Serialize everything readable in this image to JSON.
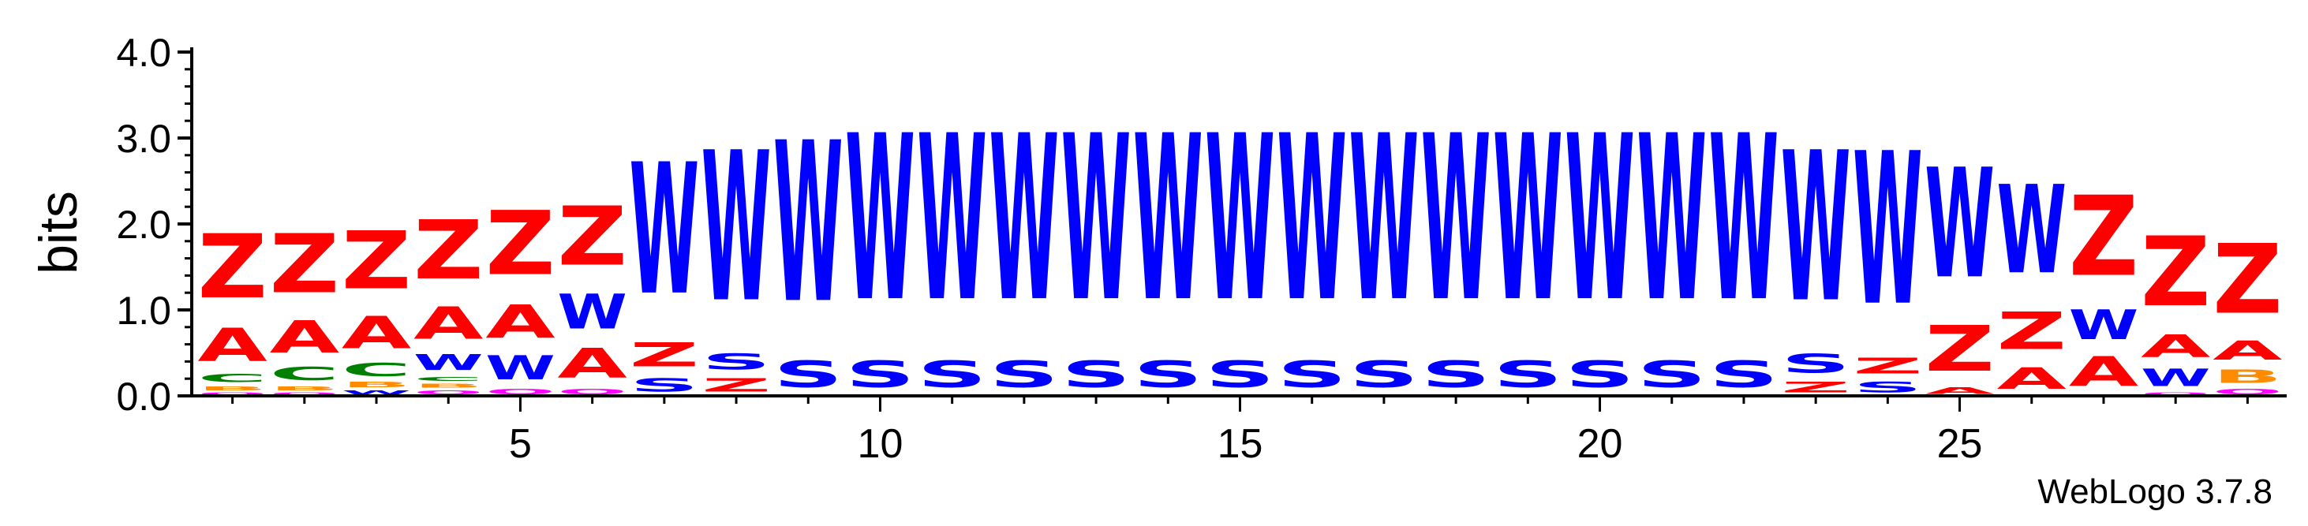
{
  "chart_data": {
    "type": "sequence-logo",
    "ylabel": "bits",
    "ylim": [
      0,
      4.0
    ],
    "y_ticks": [
      "0.0",
      "1.0",
      "2.0",
      "3.0",
      "4.0"
    ],
    "x_ticks": [
      5,
      10,
      15,
      20,
      25
    ],
    "x_range": [
      1,
      29
    ],
    "credit": "WebLogo 3.7.8",
    "colors": {
      "Z": "#ff0000",
      "A": "#ff0000",
      "W": "#0000ff",
      "S": "#0000ff",
      "C": "#008000",
      "B": "#ff8c00",
      "Q": "#ff00ff",
      "N": "#ff00ff",
      "axis": "#000000"
    },
    "positions": [
      {
        "pos": 1,
        "letters": [
          {
            "c": "Q",
            "h": 0.05
          },
          {
            "c": "B",
            "h": 0.08
          },
          {
            "c": "C",
            "h": 0.15
          },
          {
            "c": "A",
            "h": 0.62
          },
          {
            "c": "Z",
            "h": 1.2
          }
        ]
      },
      {
        "pos": 2,
        "letters": [
          {
            "c": "Q",
            "h": 0.05
          },
          {
            "c": "B",
            "h": 0.08
          },
          {
            "c": "C",
            "h": 0.25
          },
          {
            "c": "A",
            "h": 0.6
          },
          {
            "c": "Z",
            "h": 1.1
          }
        ]
      },
      {
        "pos": 3,
        "letters": [
          {
            "c": "W",
            "h": 0.08
          },
          {
            "c": "B",
            "h": 0.1
          },
          {
            "c": "C",
            "h": 0.25
          },
          {
            "c": "A",
            "h": 0.6
          },
          {
            "c": "Z",
            "h": 1.08
          }
        ]
      },
      {
        "pos": 4,
        "letters": [
          {
            "c": "Q",
            "h": 0.08
          },
          {
            "c": "B",
            "h": 0.08
          },
          {
            "c": "C",
            "h": 0.08
          },
          {
            "c": "W",
            "h": 0.3
          },
          {
            "c": "A",
            "h": 0.6
          },
          {
            "c": "Z",
            "h": 1.1
          }
        ]
      },
      {
        "pos": 5,
        "letters": [
          {
            "c": "Q",
            "h": 0.1
          },
          {
            "c": "W",
            "h": 0.45
          },
          {
            "c": "A",
            "h": 0.62
          },
          {
            "c": "Z",
            "h": 1.2
          }
        ]
      },
      {
        "pos": 6,
        "letters": [
          {
            "c": "Q",
            "h": 0.1
          },
          {
            "c": "A",
            "h": 0.55
          },
          {
            "c": "W",
            "h": 0.65
          },
          {
            "c": "Z",
            "h": 1.1
          }
        ]
      },
      {
        "pos": 7,
        "letters": [
          {
            "c": "S",
            "h": 0.25
          },
          {
            "c": "Z",
            "h": 0.45
          },
          {
            "c": "W",
            "h": 2.45
          }
        ]
      },
      {
        "pos": 8,
        "letters": [
          {
            "c": "Z",
            "h": 0.25
          },
          {
            "c": "S",
            "h": 0.3
          },
          {
            "c": "W",
            "h": 2.8
          }
        ]
      },
      {
        "pos": 9,
        "letters": [
          {
            "c": "S",
            "h": 0.5
          },
          {
            "c": "W",
            "h": 3.0
          }
        ]
      },
      {
        "pos": 10,
        "letters": [
          {
            "c": "S",
            "h": 0.5
          },
          {
            "c": "W",
            "h": 3.1
          }
        ]
      },
      {
        "pos": 11,
        "letters": [
          {
            "c": "S",
            "h": 0.5
          },
          {
            "c": "W",
            "h": 3.1
          }
        ]
      },
      {
        "pos": 12,
        "letters": [
          {
            "c": "S",
            "h": 0.5
          },
          {
            "c": "W",
            "h": 3.1
          }
        ]
      },
      {
        "pos": 13,
        "letters": [
          {
            "c": "S",
            "h": 0.5
          },
          {
            "c": "W",
            "h": 3.1
          }
        ]
      },
      {
        "pos": 14,
        "letters": [
          {
            "c": "S",
            "h": 0.5
          },
          {
            "c": "W",
            "h": 3.1
          }
        ]
      },
      {
        "pos": 15,
        "letters": [
          {
            "c": "S",
            "h": 0.5
          },
          {
            "c": "W",
            "h": 3.1
          }
        ]
      },
      {
        "pos": 16,
        "letters": [
          {
            "c": "S",
            "h": 0.5
          },
          {
            "c": "W",
            "h": 3.1
          }
        ]
      },
      {
        "pos": 17,
        "letters": [
          {
            "c": "S",
            "h": 0.5
          },
          {
            "c": "W",
            "h": 3.1
          }
        ]
      },
      {
        "pos": 18,
        "letters": [
          {
            "c": "S",
            "h": 0.5
          },
          {
            "c": "W",
            "h": 3.1
          }
        ]
      },
      {
        "pos": 19,
        "letters": [
          {
            "c": "S",
            "h": 0.5
          },
          {
            "c": "W",
            "h": 3.1
          }
        ]
      },
      {
        "pos": 20,
        "letters": [
          {
            "c": "S",
            "h": 0.5
          },
          {
            "c": "W",
            "h": 3.1
          }
        ]
      },
      {
        "pos": 21,
        "letters": [
          {
            "c": "S",
            "h": 0.5
          },
          {
            "c": "W",
            "h": 3.1
          }
        ]
      },
      {
        "pos": 22,
        "letters": [
          {
            "c": "S",
            "h": 0.5
          },
          {
            "c": "W",
            "h": 3.1
          }
        ]
      },
      {
        "pos": 23,
        "letters": [
          {
            "c": "Z",
            "h": 0.2
          },
          {
            "c": "S",
            "h": 0.35
          },
          {
            "c": "W",
            "h": 2.8
          }
        ]
      },
      {
        "pos": 24,
        "letters": [
          {
            "c": "S",
            "h": 0.2
          },
          {
            "c": "Z",
            "h": 0.3
          },
          {
            "c": "W",
            "h": 2.85
          }
        ]
      },
      {
        "pos": 25,
        "letters": [
          {
            "c": "A",
            "h": 0.12
          },
          {
            "c": "Z",
            "h": 0.85
          },
          {
            "c": "W",
            "h": 2.05
          }
        ]
      },
      {
        "pos": 26,
        "letters": [
          {
            "c": "A",
            "h": 0.4
          },
          {
            "c": "Z",
            "h": 0.7
          },
          {
            "c": "W",
            "h": 1.65
          }
        ]
      },
      {
        "pos": 27,
        "letters": [
          {
            "c": "A",
            "h": 0.55
          },
          {
            "c": "W",
            "h": 0.55
          },
          {
            "c": "Z",
            "h": 1.5
          }
        ]
      },
      {
        "pos": 28,
        "letters": [
          {
            "c": "Q",
            "h": 0.05
          },
          {
            "c": "W",
            "h": 0.32
          },
          {
            "c": "A",
            "h": 0.42
          },
          {
            "c": "Z",
            "h": 1.3
          }
        ]
      },
      {
        "pos": 29,
        "letters": [
          {
            "c": "Q",
            "h": 0.1
          },
          {
            "c": "B",
            "h": 0.25
          },
          {
            "c": "A",
            "h": 0.35
          },
          {
            "c": "Z",
            "h": 1.3
          }
        ]
      }
    ]
  }
}
